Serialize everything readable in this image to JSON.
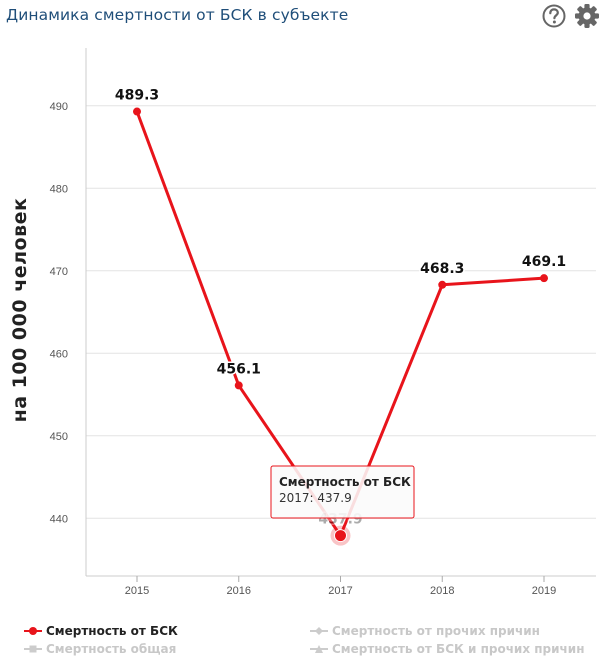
{
  "header": {
    "title": "Динамика смертности от БСК в субъекте",
    "help_icon": "question-circle-icon",
    "settings_icon": "gear-icon"
  },
  "chart_data": {
    "type": "line",
    "title": "Динамика смертности от БСК в субъекте",
    "ylabel": "на 100 000 человек",
    "xlabel": "",
    "categories": [
      "2015",
      "2016",
      "2017",
      "2018",
      "2019"
    ],
    "ylim": [
      433,
      497
    ],
    "yticks": [
      440,
      450,
      460,
      470,
      480,
      490
    ],
    "grid": true,
    "legend_position": "bottom",
    "series": [
      {
        "name": "Смертность от БСК",
        "values": [
          489.3,
          456.1,
          437.9,
          468.3,
          469.1
        ],
        "color": "#e8141b",
        "active": true
      }
    ],
    "data_labels": [
      "489.3",
      "456.1",
      "437.9",
      "468.3",
      "469.1"
    ]
  },
  "tooltip": {
    "series": "Смертность от БСК",
    "text": "2017: 437.9",
    "border_color": "#e8141b"
  },
  "legend": [
    {
      "label": "Смертность от БСК",
      "active": true,
      "color": "#e8141b",
      "marker": "circle"
    },
    {
      "label": "Смертность от прочих причин",
      "active": false,
      "color": "#cccccc",
      "marker": "diamond"
    },
    {
      "label": "Смертность общая",
      "active": false,
      "color": "#cccccc",
      "marker": "square"
    },
    {
      "label": "Смертность от БСК и прочих причин",
      "active": false,
      "color": "#cccccc",
      "marker": "triangle"
    }
  ]
}
